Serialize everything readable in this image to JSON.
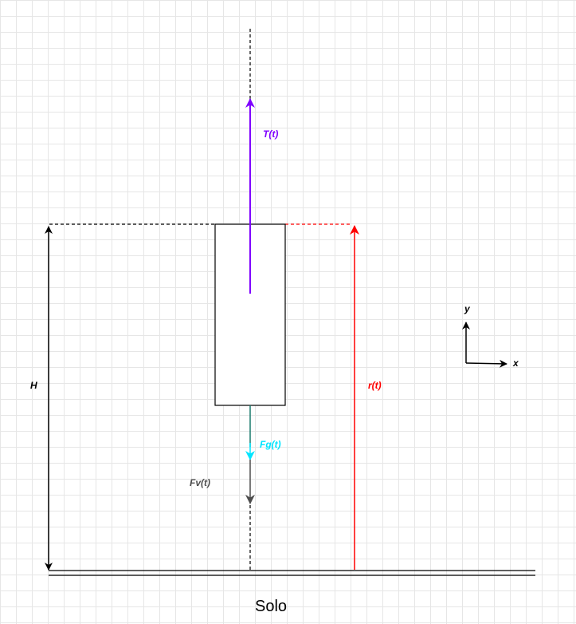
{
  "labels": {
    "thrust": "T(t)",
    "gravity_force": "Fg(t)",
    "drag_force": "Fv(t)",
    "height": "H",
    "position": "r(t)",
    "axis_x": "x",
    "axis_y": "y",
    "ground": "Solo"
  },
  "colors": {
    "thrust": "#7f00ff",
    "gravity_force": "#00e5ff",
    "gravity_stem": "#1a7a6e",
    "drag_force": "#4d4d4d",
    "position": "#ff0000",
    "black": "#000000"
  }
}
